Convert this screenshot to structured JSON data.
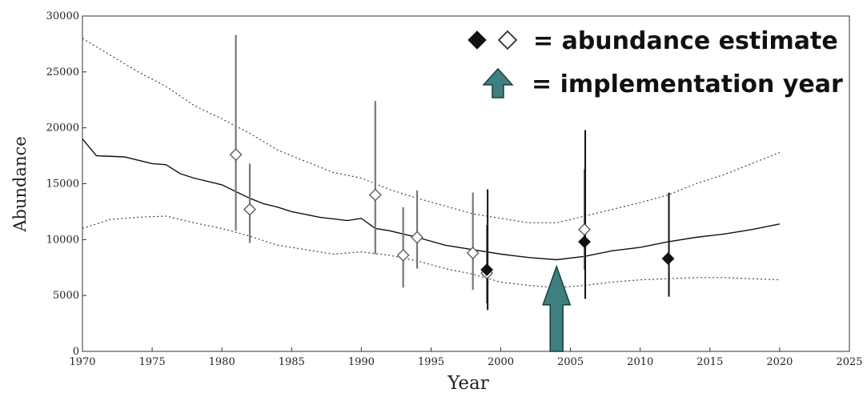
{
  "chart_data": {
    "type": "line",
    "xlabel": "Year",
    "ylabel": "Abundance",
    "xlim": [
      1970,
      2025
    ],
    "ylim": [
      0,
      30000
    ],
    "x_ticks": [
      1970,
      1975,
      1980,
      1985,
      1990,
      1995,
      2000,
      2005,
      2010,
      2015,
      2020,
      2025
    ],
    "y_ticks": [
      0,
      5000,
      10000,
      15000,
      20000,
      25000,
      30000
    ],
    "grid": false,
    "legend": {
      "placement": "top-right",
      "entries": [
        {
          "symbols": [
            "filled-diamond",
            "open-diamond"
          ],
          "text": "= abundance estimate"
        },
        {
          "symbols": [
            "teal-up-arrow"
          ],
          "text": "= implementation year"
        }
      ]
    },
    "series": [
      {
        "style": "solid",
        "x": [
          1970,
          1971,
          1973,
          1974,
          1975,
          1976,
          1977,
          1978,
          1980,
          1982,
          1983,
          1984,
          1985,
          1987,
          1989,
          1990,
          1991,
          1992,
          1994,
          1996,
          1998,
          2000,
          2002,
          2004,
          2006,
          2008,
          2010,
          2012,
          2014,
          2016,
          2018,
          2020
        ],
        "y": [
          19000,
          17500,
          17400,
          17100,
          16800,
          16700,
          15900,
          15500,
          14900,
          13700,
          13200,
          12900,
          12500,
          12000,
          11700,
          11900,
          11000,
          10800,
          10200,
          9500,
          9100,
          8700,
          8400,
          8200,
          8500,
          9000,
          9300,
          9800,
          10200,
          10500,
          10900,
          11400
        ]
      },
      {
        "style": "dotted",
        "x": [
          1970,
          1972,
          1974,
          1976,
          1978,
          1980,
          1982,
          1984,
          1986,
          1988,
          1990,
          1992,
          1994,
          1996,
          1998,
          2000,
          2002,
          2004,
          2006,
          2008,
          2010,
          2012,
          2014,
          2016,
          2018,
          2020
        ],
        "y": [
          28000,
          26500,
          25000,
          23700,
          22000,
          20800,
          19500,
          18000,
          17000,
          16000,
          15500,
          14500,
          13700,
          13000,
          12300,
          11900,
          11500,
          11500,
          12100,
          12700,
          13300,
          14000,
          15000,
          15800,
          16800,
          17800
        ]
      },
      {
        "style": "dotted",
        "x": [
          1970,
          1972,
          1974,
          1976,
          1978,
          1980,
          1982,
          1984,
          1986,
          1988,
          1990,
          1992,
          1994,
          1996,
          1998,
          2000,
          2002,
          2004,
          2006,
          2008,
          2010,
          2012,
          2014,
          2016,
          2018,
          2020
        ],
        "y": [
          11000,
          11800,
          12000,
          12100,
          11500,
          11000,
          10300,
          9500,
          9100,
          8700,
          8900,
          8600,
          8100,
          7400,
          6900,
          6200,
          5900,
          5700,
          5900,
          6200,
          6400,
          6500,
          6600,
          6600,
          6500,
          6400
        ]
      }
    ],
    "estimates": [
      {
        "x": 1981,
        "y": 17600,
        "lo": 10800,
        "hi": 28300,
        "filled": false
      },
      {
        "x": 1982,
        "y": 12700,
        "lo": 9700,
        "hi": 16800,
        "filled": false
      },
      {
        "x": 1991,
        "y": 14000,
        "lo": 8700,
        "hi": 22400,
        "filled": false
      },
      {
        "x": 1993,
        "y": 8600,
        "lo": 5700,
        "hi": 12900,
        "filled": false
      },
      {
        "x": 1994,
        "y": 10200,
        "lo": 7400,
        "hi": 14400,
        "filled": false
      },
      {
        "x": 1998,
        "y": 8800,
        "lo": 5500,
        "hi": 14200,
        "filled": false
      },
      {
        "x": 1999,
        "y": 7000,
        "lo": 4300,
        "hi": 11300,
        "filled": false
      },
      {
        "x": 1999,
        "y": 7300,
        "lo": 3700,
        "hi": 14500,
        "filled": true
      },
      {
        "x": 2006,
        "y": 10900,
        "lo": 7300,
        "hi": 16300,
        "filled": false
      },
      {
        "x": 2006,
        "y": 9800,
        "lo": 4700,
        "hi": 19800,
        "filled": true
      },
      {
        "x": 2012,
        "y": 8300,
        "lo": 4900,
        "hi": 14200,
        "filled": true
      }
    ],
    "implementation_year": {
      "x": 2004,
      "y_top": 7600
    },
    "colors": {
      "arrow_fill": "#3f7f7f",
      "arrow_stroke": "#1a3f3f",
      "line": "#111111",
      "interval": "#555555"
    }
  }
}
